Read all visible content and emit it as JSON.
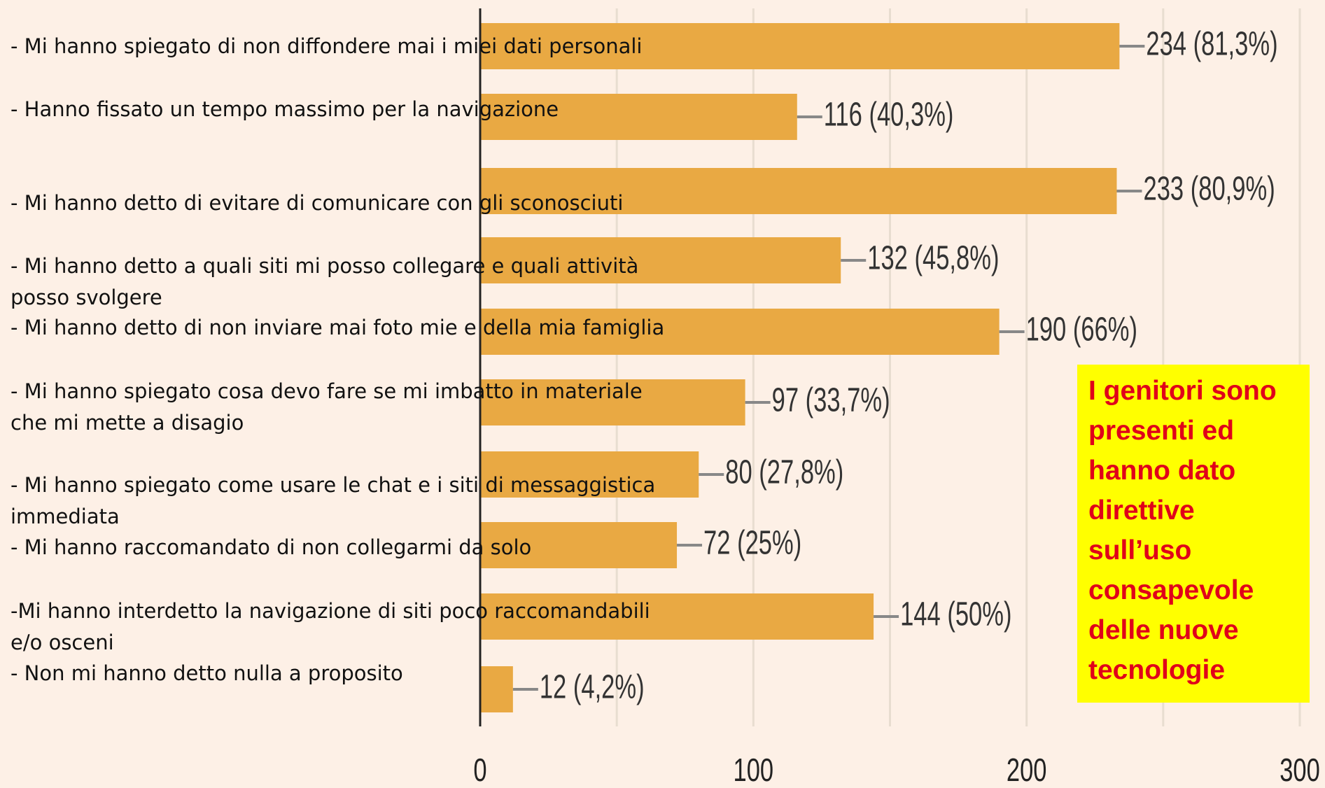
{
  "chart_data": {
    "type": "bar",
    "orientation": "horizontal",
    "categories": [
      "- Mi hanno spiegato di non diffondere mai i miei dati personali",
      "- Hanno fissato un tempo massimo per la navigazione",
      "- Mi hanno detto di evitare di comunicare con gli sconosciuti",
      "- Mi hanno detto a quali siti mi posso collegare e quali attività posso svolgere",
      "- Mi hanno detto di non inviare mai foto mie e della mia famiglia",
      "- Mi hanno spiegato cosa devo fare se mi imbatto in materiale che mi mette a disagio",
      "- Mi hanno spiegato come usare le chat e i siti di messaggistica immediata",
      "- Mi hanno raccomandato di non collegarmi da solo",
      "-Mi hanno interdetto la navigazione di siti poco raccomandabili e/o osceni",
      "- Non mi hanno detto nulla a proposito"
    ],
    "values": [
      234,
      116,
      233,
      132,
      190,
      97,
      80,
      72,
      144,
      12
    ],
    "value_labels": [
      "234 (81,3%)",
      "116 (40,3%)",
      "233 (80,9%)",
      "132 (45,8%)",
      "190 (66%)",
      "97 (33,7%)",
      "80 (27,8%)",
      "72 (25%)",
      "144 (50%)",
      "12 (4,2%)"
    ],
    "color": "#e9a943",
    "xlim": [
      0,
      300
    ],
    "xticks": [
      0,
      100,
      200,
      300
    ],
    "minor_xticks": [
      50,
      150,
      250
    ],
    "grid": true,
    "annotation": "I genitori sono presenti ed hanno dato direttive sull’uso consapevole delle nuove tecnologie"
  }
}
